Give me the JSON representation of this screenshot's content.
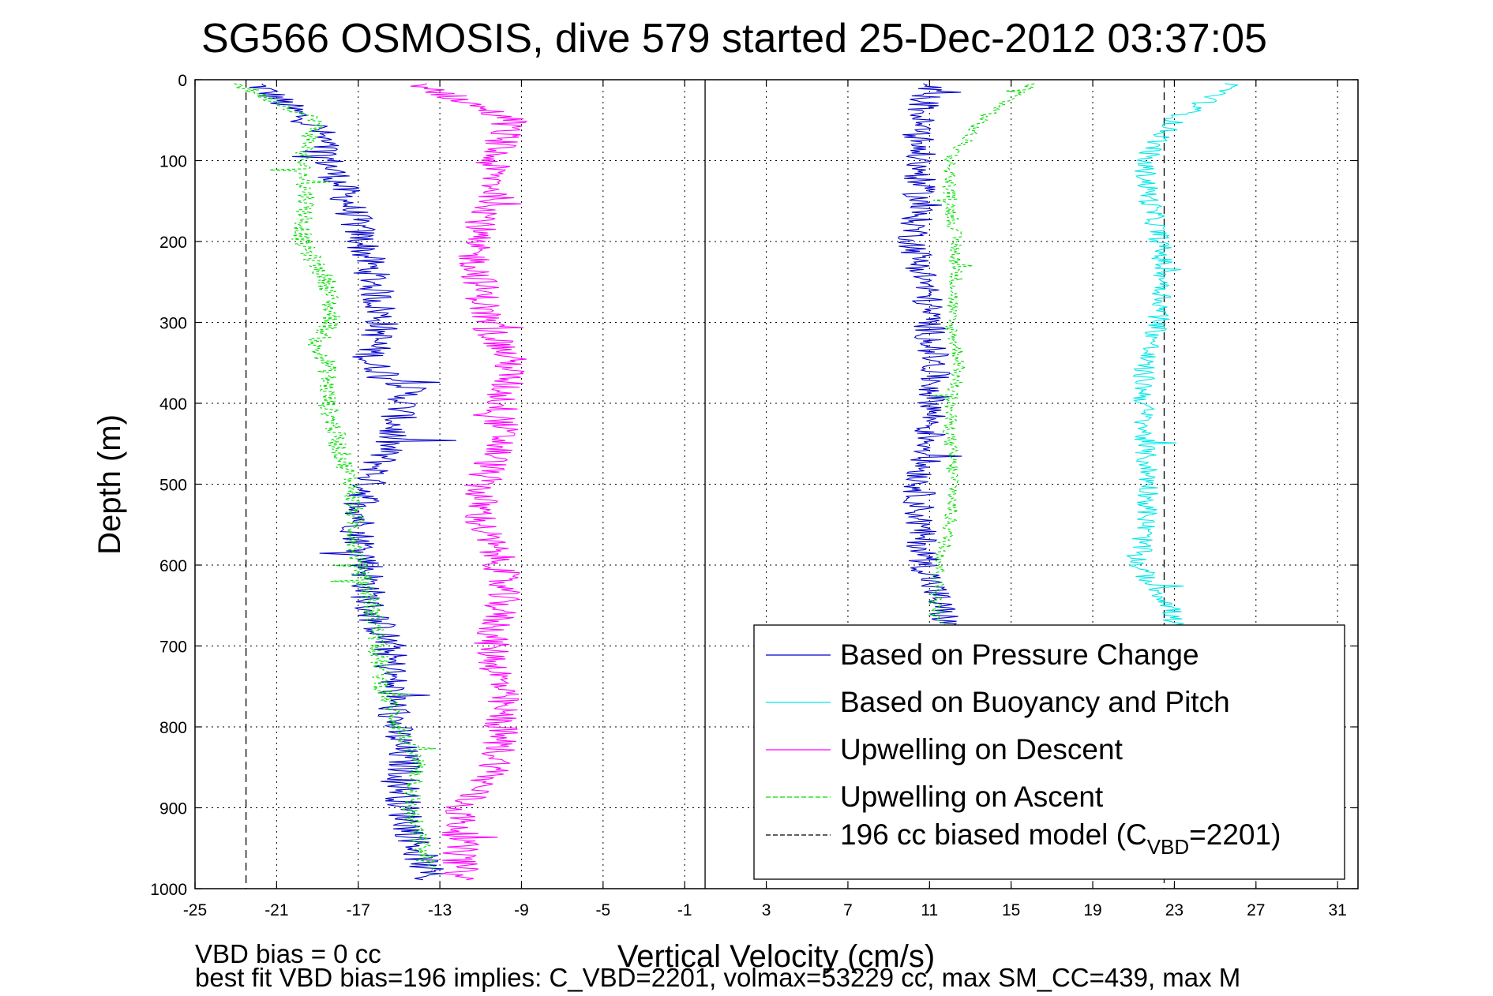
{
  "chart_data": {
    "type": "line",
    "title": "SG566 OSMOSIS, dive 579 started 25-Dec-2012 03:37:05",
    "xlabel": "Vertical Velocity (cm/s)",
    "ylabel": "Depth (m)",
    "xlim": [
      -25,
      32
    ],
    "ylim": [
      0,
      1000
    ],
    "y_reversed": true,
    "grid": true,
    "xticks": [
      -25,
      -21,
      -17,
      -13,
      -9,
      -5,
      -1,
      3,
      7,
      11,
      15,
      19,
      23,
      27,
      31
    ],
    "yticks": [
      0,
      100,
      200,
      300,
      400,
      500,
      600,
      700,
      800,
      900,
      1000
    ],
    "legend_position": "bottom-right",
    "legend": [
      {
        "label": "Based on Pressure Change",
        "color": "#0000c8",
        "style": "solid"
      },
      {
        "label": "Based on Buoyancy and Pitch",
        "color": "#00e8e8",
        "style": "solid"
      },
      {
        "label": "Upwelling on Descent",
        "color": "#ff00ff",
        "style": "solid"
      },
      {
        "label": "Upwelling on Ascent",
        "color": "#00dd00",
        "style": "dashed"
      },
      {
        "label_prefix": "196 cc biased model (C",
        "label_sub": "VBD",
        "label_suffix": "=2201)",
        "color": "#000000",
        "style": "dashed"
      }
    ],
    "series": [
      {
        "name": "Based on Pressure Change",
        "color": "#0000c8",
        "style": "solid",
        "jitter": 0.9,
        "x": [
          -22,
          -19,
          -18.5,
          -17.5,
          -16.8,
          -16.2,
          -15.8,
          -16.5,
          -14.5,
          -15.5,
          -16.5,
          -17,
          -16.5,
          -16.5,
          -15.5,
          -15.2,
          -14.7,
          -14.8,
          -13.5
        ],
        "y": [
          5,
          60,
          100,
          150,
          200,
          250,
          300,
          350,
          380,
          450,
          500,
          560,
          600,
          650,
          700,
          800,
          850,
          900,
          990
        ]
      },
      {
        "name": "Upwelling on Ascent",
        "color": "#00dd00",
        "style": "dashed",
        "jitter": 0.5,
        "x": [
          -23,
          -19,
          -19.8,
          -19.5,
          -19.8,
          -18.5,
          -18.3,
          -19.2,
          -18.5,
          -18.5,
          -18,
          -17.3,
          -17.2,
          -17,
          -16.3,
          -15.8,
          -15,
          -14,
          -14.5,
          -13.5
        ],
        "y": [
          5,
          50,
          100,
          150,
          200,
          250,
          300,
          330,
          350,
          400,
          450,
          500,
          550,
          600,
          650,
          750,
          800,
          850,
          900,
          980
        ]
      },
      {
        "name": "Upwelling on Descent",
        "color": "#ff00ff",
        "style": "solid",
        "jitter": 0.9,
        "x": [
          -14,
          -9.5,
          -10.5,
          -10.2,
          -11.5,
          -11,
          -10.7,
          -9.5,
          -10,
          -10,
          -11,
          -11,
          -10,
          -10,
          -10.5,
          -10,
          -10,
          -10.2,
          -12,
          -12,
          -12
        ],
        "y": [
          5,
          50,
          100,
          150,
          200,
          250,
          300,
          350,
          400,
          450,
          500,
          550,
          600,
          650,
          700,
          750,
          800,
          850,
          900,
          950,
          990
        ]
      },
      {
        "name": "Based on Buoyancy and Pitch",
        "color": "#00e8e8",
        "style": "solid",
        "jitter": 0.55,
        "x": [
          26,
          23,
          21.5,
          21.8,
          22.3,
          22.5,
          22.3,
          21.5,
          21.5,
          21.5,
          21.8,
          21.6,
          21.2,
          21.8,
          22.8,
          23
        ],
        "y": [
          5,
          50,
          100,
          150,
          200,
          250,
          300,
          350,
          400,
          450,
          500,
          550,
          600,
          620,
          650,
          680
        ]
      },
      {
        "name": "Based on Pressure Change",
        "color": "#0000c8",
        "style": "solid",
        "jitter": 0.8,
        "x": [
          11,
          10.5,
          10.5,
          10.5,
          10.2,
          10.8,
          11,
          11.2,
          11.2,
          11,
          10.5,
          10.5,
          10.8,
          11.5,
          12
        ],
        "y": [
          5,
          50,
          100,
          150,
          200,
          250,
          300,
          350,
          400,
          450,
          500,
          550,
          600,
          650,
          680
        ]
      },
      {
        "name": "Upwelling on Ascent",
        "color": "#00dd00",
        "style": "dashed",
        "jitter": 0.35,
        "x": [
          16,
          13.5,
          12,
          12,
          12.3,
          12.3,
          12,
          12.5,
          12,
          12,
          12.2,
          12,
          11.5,
          11.3,
          11.8
        ],
        "y": [
          5,
          50,
          100,
          150,
          200,
          250,
          300,
          350,
          400,
          450,
          500,
          550,
          600,
          650,
          680
        ]
      }
    ],
    "reference_lines": [
      {
        "orientation": "vertical",
        "x": -22.5,
        "style": "dashed",
        "color": "#000000"
      },
      {
        "orientation": "vertical",
        "x": 22.5,
        "style": "dashed",
        "color": "#000000"
      },
      {
        "orientation": "vertical",
        "x": 0,
        "style": "solid",
        "color": "#000000"
      }
    ],
    "annotations": [
      "VBD bias = 0 cc",
      "best fit VBD bias=196 implies: C_VBD=2201, volmax=53229 cc, max SM_CC=439, max M"
    ]
  }
}
